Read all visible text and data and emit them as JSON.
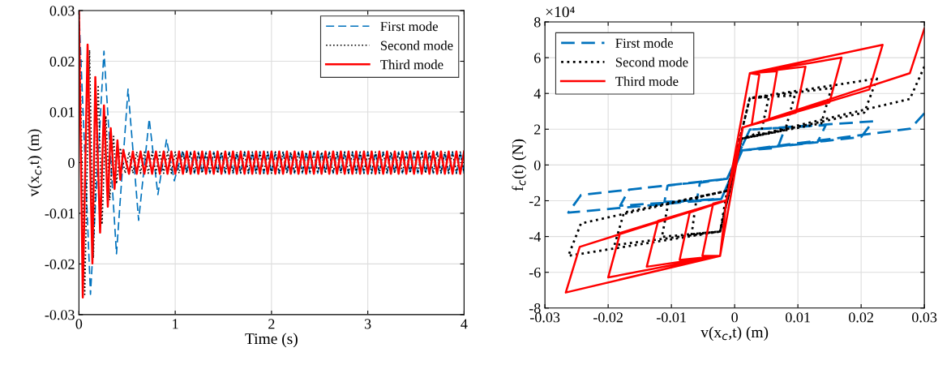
{
  "chart_data": [
    {
      "type": "line",
      "xlabel": "Time (s)",
      "ylabel": "v(x$_{c}$,t) (m)",
      "xlim": [
        0,
        4
      ],
      "xticks": [
        0,
        1,
        2,
        3,
        4
      ],
      "ylim": [
        -0.03,
        0.03
      ],
      "yticks": [
        -0.03,
        -0.02,
        -0.01,
        0,
        0.01,
        0.02,
        0.03
      ],
      "grid": true,
      "legend": "top right",
      "series": [
        {
          "name": "First mode",
          "color": "#0072bd",
          "line_style": "dashed",
          "x": [
            0,
            0.12,
            0.26,
            0.39,
            0.51,
            0.62,
            0.73,
            0.82,
            0.91,
            0.99,
            1.08,
            1.12,
            1.16,
            1.2,
            1.24,
            1.28,
            1.32,
            1.36,
            1.4,
            1.44,
            1.48,
            1.52,
            1.56,
            1.6,
            1.64,
            1.68,
            1.72,
            1.76,
            1.8,
            1.84,
            1.88,
            1.92,
            1.96,
            2.0,
            2.04,
            2.08,
            2.12,
            2.16,
            2.2,
            2.24,
            2.28,
            2.32,
            2.36,
            2.4,
            2.44,
            2.48,
            2.52,
            2.56,
            2.6,
            2.64,
            2.68,
            2.72,
            2.76,
            2.8,
            2.84,
            2.88,
            2.92,
            2.96,
            3.0,
            3.04,
            3.08,
            3.12,
            3.16,
            3.2,
            3.24,
            3.28,
            3.32,
            3.36,
            3.4,
            3.44,
            3.48,
            3.52,
            3.56,
            3.6,
            3.64,
            3.68,
            3.72,
            3.76,
            3.8,
            3.84,
            3.88,
            3.92,
            3.96,
            4.0
          ],
          "values": [
            0.03,
            -0.026,
            0.022,
            -0.018,
            0.0145,
            -0.0114,
            0.0086,
            -0.0063,
            0.0046,
            -0.0036,
            0.0025,
            -0.0021,
            0.0021,
            -0.0021,
            0.0021,
            -0.0021,
            0.0021,
            -0.0021,
            0.0021,
            -0.0021,
            0.0021,
            -0.0021,
            0.0021,
            -0.0021,
            0.0021,
            -0.0021,
            0.0021,
            -0.0021,
            0.0021,
            -0.0021,
            0.0021,
            -0.0021,
            0.0021,
            -0.0021,
            0.0021,
            -0.0021,
            0.0021,
            -0.0021,
            0.0021,
            -0.0021,
            0.0021,
            -0.0021,
            0.0021,
            -0.0021,
            0.0021,
            -0.0021,
            0.0021,
            -0.0021,
            0.0021,
            -0.0021,
            0.0021,
            -0.0021,
            0.0021,
            -0.0021,
            0.0021,
            -0.0021,
            0.0021,
            -0.0021,
            0.0021,
            -0.0021,
            0.0021,
            -0.0021,
            0.0021,
            -0.0021,
            0.0021,
            -0.0021,
            0.0021,
            -0.0021,
            0.0021,
            -0.0021,
            0.0021,
            -0.0021,
            0.0021,
            -0.0021,
            0.0021,
            -0.0021,
            0.0021,
            -0.0021,
            0.0021,
            -0.0021,
            0.0021,
            -0.0021,
            0.0021,
            -0.0021
          ]
        },
        {
          "name": "Second mode",
          "color": "#000000",
          "line_style": "dotted",
          "x": [
            0,
            0.06,
            0.11,
            0.15,
            0.2,
            0.24,
            0.28,
            0.32,
            0.36,
            0.39,
            0.43,
            0.48,
            0.52,
            0.56,
            0.6,
            0.64,
            0.68,
            0.72,
            0.76,
            0.8,
            0.84,
            0.88,
            0.92,
            0.96,
            1.0,
            1.04,
            1.08,
            1.12,
            1.16,
            1.2,
            1.24,
            1.28,
            1.32,
            1.36,
            1.4,
            1.44,
            1.48,
            1.52,
            1.56,
            1.6,
            1.64,
            1.68,
            1.72,
            1.76,
            1.8,
            1.84,
            1.88,
            1.92,
            1.96,
            2.0,
            2.04,
            2.08,
            2.12,
            2.16,
            2.2,
            2.24,
            2.28,
            2.32,
            2.36,
            2.4,
            2.44,
            2.48,
            2.52,
            2.56,
            2.6,
            2.64,
            2.68,
            2.72,
            2.76,
            2.8,
            2.84,
            2.88,
            2.92,
            2.96,
            3.0,
            3.04,
            3.08,
            3.12,
            3.16,
            3.2,
            3.24,
            3.28,
            3.32,
            3.36,
            3.4,
            3.44,
            3.48,
            3.52,
            3.56,
            3.6,
            3.64,
            3.68,
            3.72,
            3.76,
            3.8,
            3.84,
            3.88,
            3.92,
            3.96,
            4.0
          ],
          "values": [
            0.03,
            -0.026,
            0.0222,
            -0.0188,
            0.0153,
            -0.0122,
            0.0092,
            -0.0074,
            0.0052,
            -0.0042,
            0.0029,
            -0.0021,
            0.0021,
            -0.0021,
            0.0021,
            -0.0021,
            0.0021,
            -0.0021,
            0.0021,
            -0.0021,
            0.0021,
            -0.0021,
            0.0021,
            -0.0021,
            0.0021,
            -0.0021,
            0.0021,
            -0.0021,
            0.0021,
            -0.0021,
            0.0021,
            -0.0021,
            0.0021,
            -0.0021,
            0.0021,
            -0.0021,
            0.0021,
            -0.0021,
            0.0021,
            -0.0021,
            0.0021,
            -0.0021,
            0.0021,
            -0.0021,
            0.0021,
            -0.0021,
            0.0021,
            -0.0021,
            0.0021,
            -0.0021,
            0.0021,
            -0.0021,
            0.0021,
            -0.0021,
            0.0021,
            -0.0021,
            0.0021,
            -0.0021,
            0.0021,
            -0.0021,
            0.0021,
            -0.0021,
            0.0021,
            -0.0021,
            0.0021,
            -0.0021,
            0.0021,
            -0.0021,
            0.0021,
            -0.0021,
            0.0021,
            -0.0021,
            0.0021,
            -0.0021,
            0.0021,
            -0.0021,
            0.0021,
            -0.0021,
            0.0021,
            -0.0021,
            0.0021,
            -0.0021,
            0.0021,
            -0.0021,
            0.0021,
            -0.0021,
            0.0021,
            -0.0021,
            0.0021,
            -0.0021,
            0.0021,
            -0.0021,
            0.0021,
            -0.0021,
            0.0021,
            -0.0021,
            0.0021,
            -0.0021,
            0.0021,
            -0.0021
          ]
        },
        {
          "name": "Third mode",
          "color": "#ff0000",
          "line_style": "solid",
          "x": [
            0,
            0.04,
            0.09,
            0.14,
            0.17,
            0.22,
            0.26,
            0.3,
            0.33,
            0.37,
            0.4,
            0.43,
            0.46,
            0.52,
            0.56,
            0.6,
            0.64,
            0.68,
            0.72,
            0.76,
            0.8,
            0.84,
            0.88,
            0.92,
            0.96,
            1.0,
            1.04,
            1.08,
            1.12,
            1.16,
            1.2,
            1.24,
            1.28,
            1.32,
            1.36,
            1.4,
            1.44,
            1.48,
            1.52,
            1.56,
            1.6,
            1.64,
            1.68,
            1.72,
            1.76,
            1.8,
            1.84,
            1.88,
            1.92,
            1.96,
            2.0,
            2.04,
            2.08,
            2.12,
            2.16,
            2.2,
            2.24,
            2.28,
            2.32,
            2.36,
            2.4,
            2.44,
            2.48,
            2.52,
            2.56,
            2.6,
            2.64,
            2.68,
            2.72,
            2.76,
            2.8,
            2.84,
            2.88,
            2.92,
            2.96,
            3.0,
            3.04,
            3.08,
            3.12,
            3.16,
            3.2,
            3.24,
            3.28,
            3.32,
            3.36,
            3.4,
            3.44,
            3.48,
            3.52,
            3.56,
            3.6,
            3.64,
            3.68,
            3.72,
            3.76,
            3.8,
            3.84,
            3.88,
            3.92,
            3.96,
            4.0
          ],
          "values": [
            0.03,
            -0.0266,
            0.0233,
            -0.0199,
            0.0169,
            -0.0138,
            0.0113,
            -0.0087,
            0.0068,
            -0.0052,
            0.0044,
            -0.0034,
            0.0025,
            -0.0022,
            0.0022,
            -0.0022,
            0.0022,
            -0.0022,
            0.0022,
            -0.0022,
            0.0022,
            -0.0022,
            0.0022,
            -0.0022,
            0.0022,
            -0.0022,
            0.0022,
            -0.0022,
            0.0022,
            -0.0022,
            0.0022,
            -0.0022,
            0.0022,
            -0.0022,
            0.0022,
            -0.0022,
            0.0022,
            -0.0022,
            0.0022,
            -0.0022,
            0.0022,
            -0.0022,
            0.0022,
            -0.0022,
            0.0022,
            -0.0022,
            0.0022,
            -0.0022,
            0.0022,
            -0.0022,
            0.0022,
            -0.0022,
            0.0022,
            -0.0022,
            0.0022,
            -0.0022,
            0.0022,
            -0.0022,
            0.0022,
            -0.0022,
            0.0022,
            -0.0022,
            0.0022,
            -0.0022,
            0.0022,
            -0.0022,
            0.0022,
            -0.0022,
            0.0022,
            -0.0022,
            0.0022,
            -0.0022,
            0.0022,
            -0.0022,
            0.0022,
            -0.0022,
            0.0022,
            -0.0022,
            0.0022,
            -0.0022,
            0.0022,
            -0.0022,
            0.0022,
            -0.0022,
            0.0022,
            -0.0022,
            0.0022,
            -0.0022,
            0.0022,
            -0.0022,
            0.0022,
            -0.0022,
            0.0022,
            -0.0022,
            0.0022,
            -0.0022,
            0.0022,
            -0.0022,
            0.0022,
            -0.0022,
            0.0022
          ]
        }
      ]
    },
    {
      "type": "line",
      "xlabel": "v(x$_{c}$,t) (m)",
      "ylabel": "f$_{c}$(t) (N)",
      "annotations": [
        "×10⁴"
      ],
      "xlim": [
        -0.03,
        0.03
      ],
      "xticks": [
        -0.03,
        -0.02,
        -0.01,
        0,
        0.01,
        0.02,
        0.03
      ],
      "ylim": [
        -8,
        8
      ],
      "yticks": [
        -8,
        -6,
        -4,
        -2,
        0,
        2,
        4,
        6,
        8
      ],
      "grid": true,
      "legend": "top left",
      "series": [
        {
          "name": "First mode",
          "color": "#0072bd",
          "line_style": "dashed",
          "x": [
            0.03,
            0.0278,
            0.0012,
            -0.0021,
            -0.0263,
            -0.0243,
            -0.0012,
            0.0024,
            0.0219,
            0.02,
            0.0012,
            -0.0021,
            -0.0181,
            -0.0167,
            -0.0012,
            0.0024,
            0.0144,
            0.0131,
            0.0012,
            -0.0021,
            -0.0111,
            -0.0106,
            -0.0012,
            0.0024,
            0.008,
            0.0068,
            0.0012,
            -0.0021,
            -0.006,
            -0.0055,
            -0.0012,
            0.0012
          ],
          "values": [
            2.89,
            2.03,
            0.82,
            -1.9,
            -2.66,
            -1.68,
            -0.77,
            1.98,
            2.44,
            1.57,
            0.82,
            -1.9,
            -2.28,
            -1.38,
            -0.77,
            1.98,
            2.22,
            1.27,
            0.82,
            -1.9,
            -2.06,
            -1.15,
            -0.77,
            1.98,
            2.1,
            0.95,
            0.82,
            -1.9,
            -2.0,
            -1.0,
            -0.77,
            0.82
          ]
        },
        {
          "name": "Second mode",
          "color": "#000000",
          "line_style": "dotted",
          "x": [
            0.03,
            0.0277,
            0.0011,
            -0.0023,
            -0.0263,
            -0.0243,
            -0.0012,
            0.0024,
            0.0225,
            0.0205,
            0.0011,
            -0.0023,
            -0.019,
            -0.0175,
            -0.0012,
            0.0024,
            0.0153,
            0.0137,
            0.0011,
            -0.0023,
            -0.0115,
            -0.0105,
            -0.0012,
            0.0024,
            0.0095,
            0.008,
            0.0011,
            -0.0023,
            -0.0068,
            -0.006,
            -0.0012,
            0.0024,
            0.0054,
            0.0042,
            0.0011,
            -0.0023,
            -0.0012,
            0.0011
          ],
          "values": [
            5.5,
            3.69,
            1.47,
            -3.72,
            -5.08,
            -3.27,
            -1.45,
            3.74,
            4.83,
            2.93,
            1.47,
            -3.72,
            -4.48,
            -2.66,
            -1.45,
            3.74,
            4.3,
            2.33,
            1.47,
            -3.72,
            -4.02,
            -2.13,
            -1.45,
            3.74,
            3.89,
            1.95,
            1.47,
            -3.72,
            -3.87,
            -1.8,
            -1.45,
            3.74,
            3.8,
            1.85,
            1.47,
            -3.72,
            -1.45,
            1.47
          ]
        },
        {
          "name": "Third mode",
          "color": "#ff0000",
          "line_style": "solid",
          "x": [
            0.03,
            0.0277,
            0.0013,
            -0.0023,
            -0.0267,
            -0.0245,
            -0.0013,
            0.0024,
            0.0234,
            0.0213,
            0.0013,
            -0.0023,
            -0.02,
            -0.0181,
            -0.0013,
            0.0024,
            0.0169,
            0.015,
            0.0013,
            -0.0023,
            -0.0139,
            -0.0121,
            -0.0013,
            0.0024,
            0.0112,
            0.0097,
            0.0013,
            -0.0023,
            -0.0087,
            -0.0071,
            -0.0013,
            0.0024,
            0.0067,
            0.0054,
            0.0013,
            -0.0023,
            -0.0051,
            -0.0034,
            -0.0013,
            0.0024,
            0.0039,
            0.0027,
            0.0013,
            -0.0023,
            -0.0013,
            0.0013
          ],
          "values": [
            7.62,
            5.13,
            2.1,
            -5.08,
            -7.13,
            -4.58,
            -1.98,
            5.13,
            6.72,
            4.22,
            2.1,
            -5.08,
            -6.29,
            -3.8,
            -1.98,
            5.13,
            6.0,
            3.5,
            2.1,
            -5.08,
            -5.69,
            -3.12,
            -1.98,
            5.13,
            5.5,
            2.93,
            2.1,
            -5.08,
            -5.31,
            -2.66,
            -1.98,
            5.13,
            5.25,
            2.56,
            2.1,
            -5.08,
            -5.08,
            -2.16,
            -1.98,
            5.13,
            5.05,
            2.25,
            2.1,
            -5.08,
            -1.98,
            2.1
          ]
        }
      ]
    }
  ]
}
